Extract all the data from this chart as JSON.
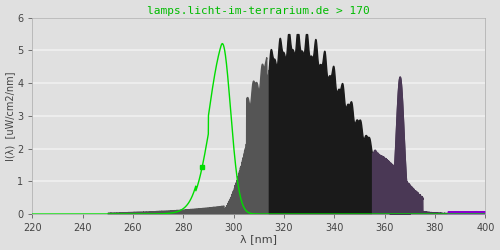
{
  "title": "lamps.licht-im-terrarium.de > 170",
  "xlabel": "λ [nm]",
  "ylabel": "I(λ)  [uW/cm2/nm]",
  "xlim": [
    220,
    400
  ],
  "ylim": [
    0,
    6.0
  ],
  "yticks": [
    0.0,
    1.0,
    2.0,
    3.0,
    4.0,
    5.0,
    6.0
  ],
  "xticks": [
    220,
    240,
    260,
    280,
    300,
    320,
    340,
    360,
    380,
    400
  ],
  "bg_color": "#e0e0e0",
  "grid_color": "#f0f0f0",
  "title_color": "#00bb00",
  "green_line_color": "#00dd00",
  "color_uvb": "#222222",
  "color_uva_dark": "#282828",
  "color_uva_mid": "#4a3a50",
  "color_uva_light": "#6644aa",
  "color_visible": "#7700cc"
}
